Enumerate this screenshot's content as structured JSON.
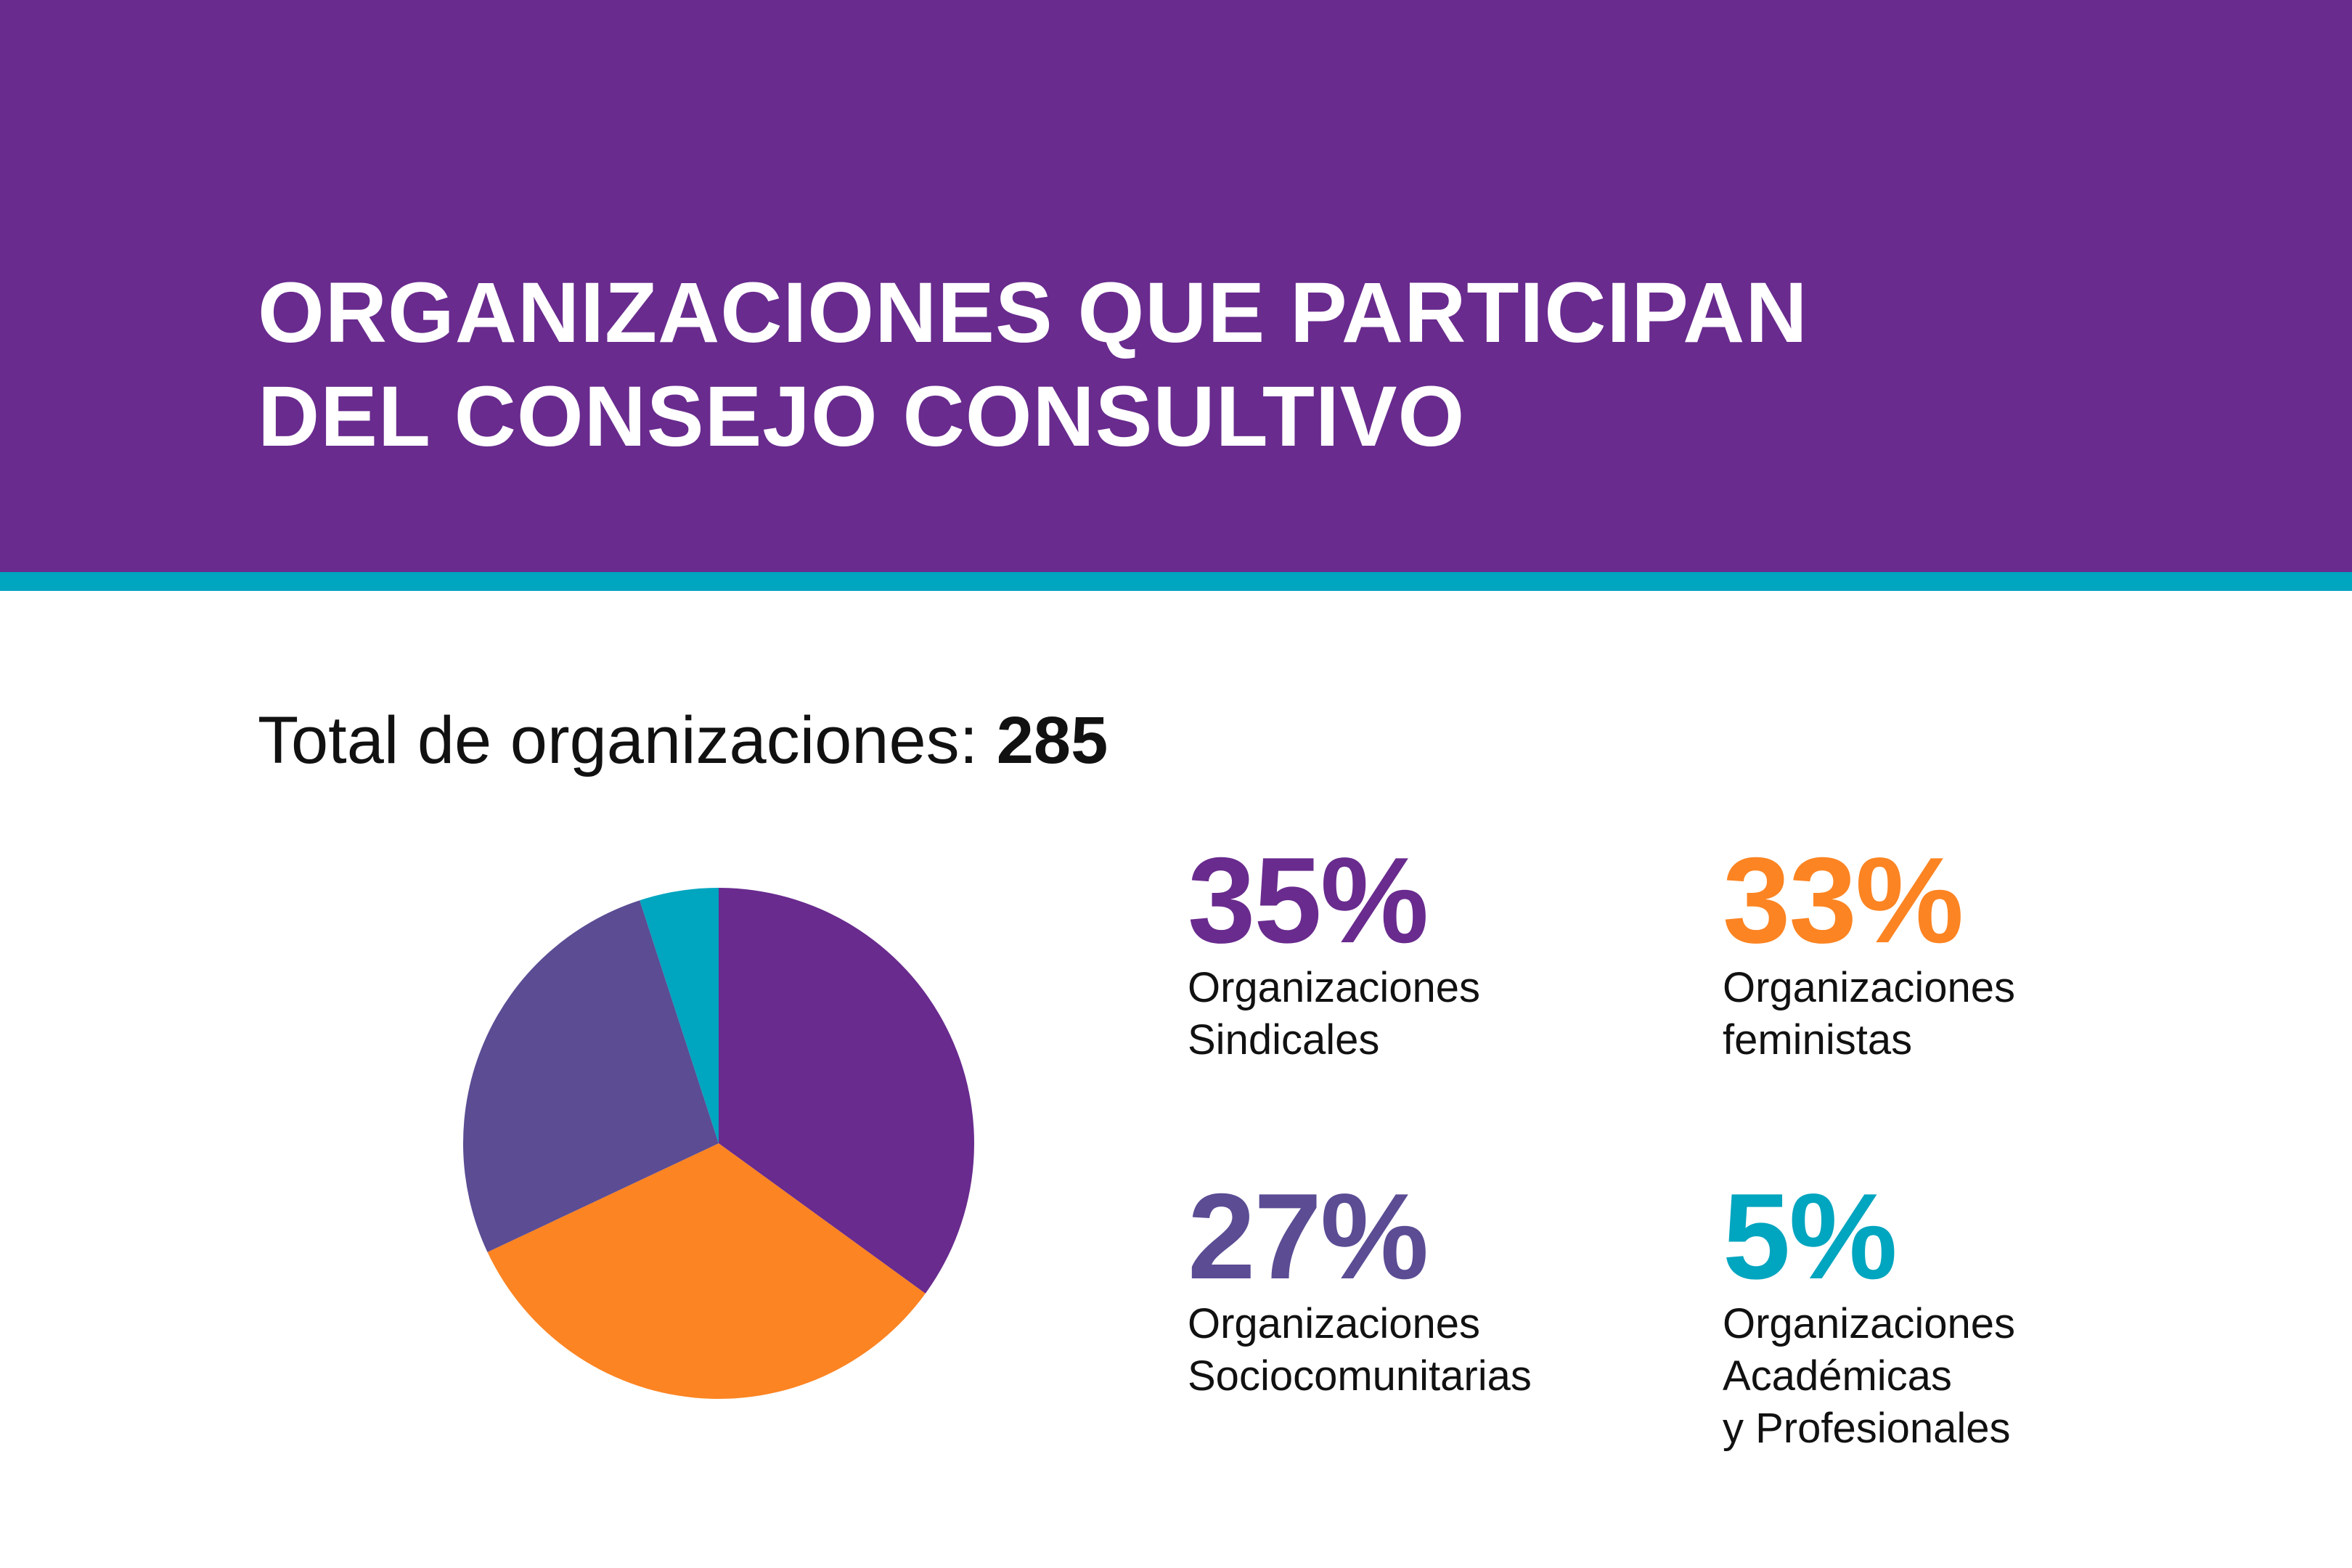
{
  "header": {
    "title_line1": "ORGANIZACIONES QUE PARTICIPAN",
    "title_line2": "DEL CONSEJO CONSULTIVO"
  },
  "total": {
    "label": "Total de organizaciones:",
    "value": "285"
  },
  "colors": {
    "header": "#692b8e",
    "stripe": "#00a5bf"
  },
  "chart_data": {
    "type": "pie",
    "slices": [
      {
        "label_lines": [
          "Organizaciones",
          "Sindicales"
        ],
        "value": 35,
        "display": "35%",
        "color": "#692b8e"
      },
      {
        "label_lines": [
          "Organizaciones",
          "feministas"
        ],
        "value": 33,
        "display": "33%",
        "color": "#fc8422"
      },
      {
        "label_lines": [
          "Organizaciones",
          "Sociocomunitarias"
        ],
        "value": 27,
        "display": "27%",
        "color": "#5b4c94"
      },
      {
        "label_lines": [
          "Organizaciones",
          "Académicas",
          "y Profesionales"
        ],
        "value": 5,
        "display": "5%",
        "color": "#00a5bf"
      }
    ]
  }
}
